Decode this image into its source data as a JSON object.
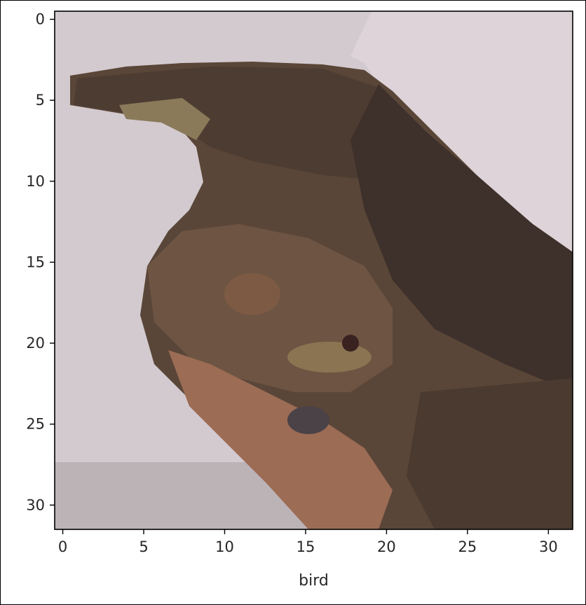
{
  "chart_data": {
    "type": "image",
    "subject": "bird",
    "xlabel": "bird",
    "ylabel": "",
    "x_ticks": [
      0,
      5,
      10,
      15,
      20,
      25,
      30
    ],
    "y_ticks": [
      0,
      5,
      10,
      15,
      20,
      25,
      30
    ],
    "x_range": [
      -0.5,
      31.5
    ],
    "y_range": [
      31.5,
      -0.5
    ],
    "grid": false,
    "image_size": [
      32,
      32
    ],
    "colors": {
      "background_top": "#d8ced4",
      "background_left": "#cfc6cc",
      "background_bottom": "#b9b0b4",
      "bird_dark": "#3a2c26",
      "bird_head": "#5e4a3e",
      "bird_breast": "#7a5c46",
      "bird_rufous": "#a8705a",
      "bird_buff": "#8a7a52",
      "axes_frame": "#000000",
      "tick_text": "#262626"
    }
  }
}
